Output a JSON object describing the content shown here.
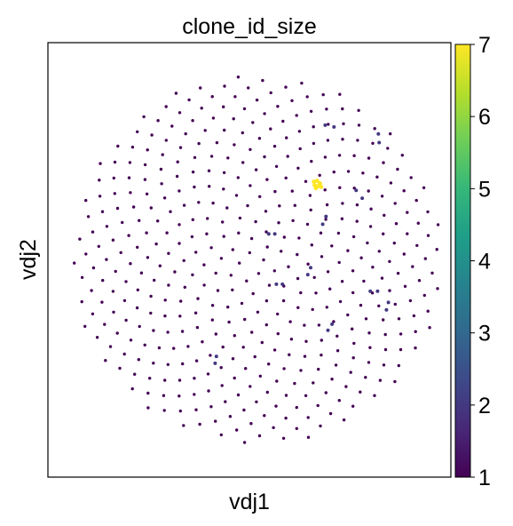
{
  "chart_data": {
    "type": "scatter",
    "title": "clone_id_size",
    "xlabel": "vdj1",
    "ylabel": "vdj2",
    "x_ticks": [],
    "y_ticks": [],
    "colorbar": {
      "label": "",
      "min": 1,
      "max": 7,
      "ticks": [
        1,
        2,
        3,
        4,
        5,
        6,
        7
      ],
      "colormap": "viridis",
      "stops": [
        "#440154",
        "#482878",
        "#3e4989",
        "#31688e",
        "#26828e",
        "#1f9e89",
        "#35b779",
        "#6ece58",
        "#b5de2b",
        "#fde725"
      ]
    },
    "background_points": {
      "count": 460,
      "value": 1,
      "layout": "disk"
    },
    "clusters": [
      {
        "value": 7,
        "points": [
          [
            0.66,
            0.68
          ],
          [
            0.668,
            0.682
          ],
          [
            0.675,
            0.676
          ],
          [
            0.662,
            0.672
          ],
          [
            0.671,
            0.67
          ],
          [
            0.665,
            0.665
          ],
          [
            0.678,
            0.668
          ]
        ]
      },
      {
        "value": 2,
        "points": [
          [
            0.688,
            0.81
          ],
          [
            0.71,
            0.806
          ]
        ]
      },
      {
        "value": 2,
        "points": [
          [
            0.82,
            0.79
          ],
          [
            0.822,
            0.77
          ]
        ]
      },
      {
        "value": 2,
        "points": [
          [
            0.765,
            0.66
          ],
          [
            0.78,
            0.642
          ]
        ]
      },
      {
        "value": 2,
        "points": [
          [
            0.69,
            0.6
          ],
          [
            0.682,
            0.582
          ]
        ]
      },
      {
        "value": 2,
        "points": [
          [
            0.548,
            0.56
          ],
          [
            0.563,
            0.56
          ]
        ]
      },
      {
        "value": 2,
        "points": [
          [
            0.652,
            0.482
          ],
          [
            0.645,
            0.466
          ]
        ]
      },
      {
        "value": 2,
        "points": [
          [
            0.567,
            0.444
          ],
          [
            0.582,
            0.444
          ]
        ]
      },
      {
        "value": 2,
        "points": [
          [
            0.8,
            0.428
          ],
          [
            0.818,
            0.428
          ]
        ]
      },
      {
        "value": 2,
        "points": [
          [
            0.845,
            0.402
          ],
          [
            0.84,
            0.385
          ]
        ]
      },
      {
        "value": 2,
        "points": [
          [
            0.705,
            0.352
          ],
          [
            0.695,
            0.338
          ]
        ]
      },
      {
        "value": 2,
        "points": [
          [
            0.418,
            0.278
          ],
          [
            0.415,
            0.262
          ]
        ]
      }
    ]
  }
}
